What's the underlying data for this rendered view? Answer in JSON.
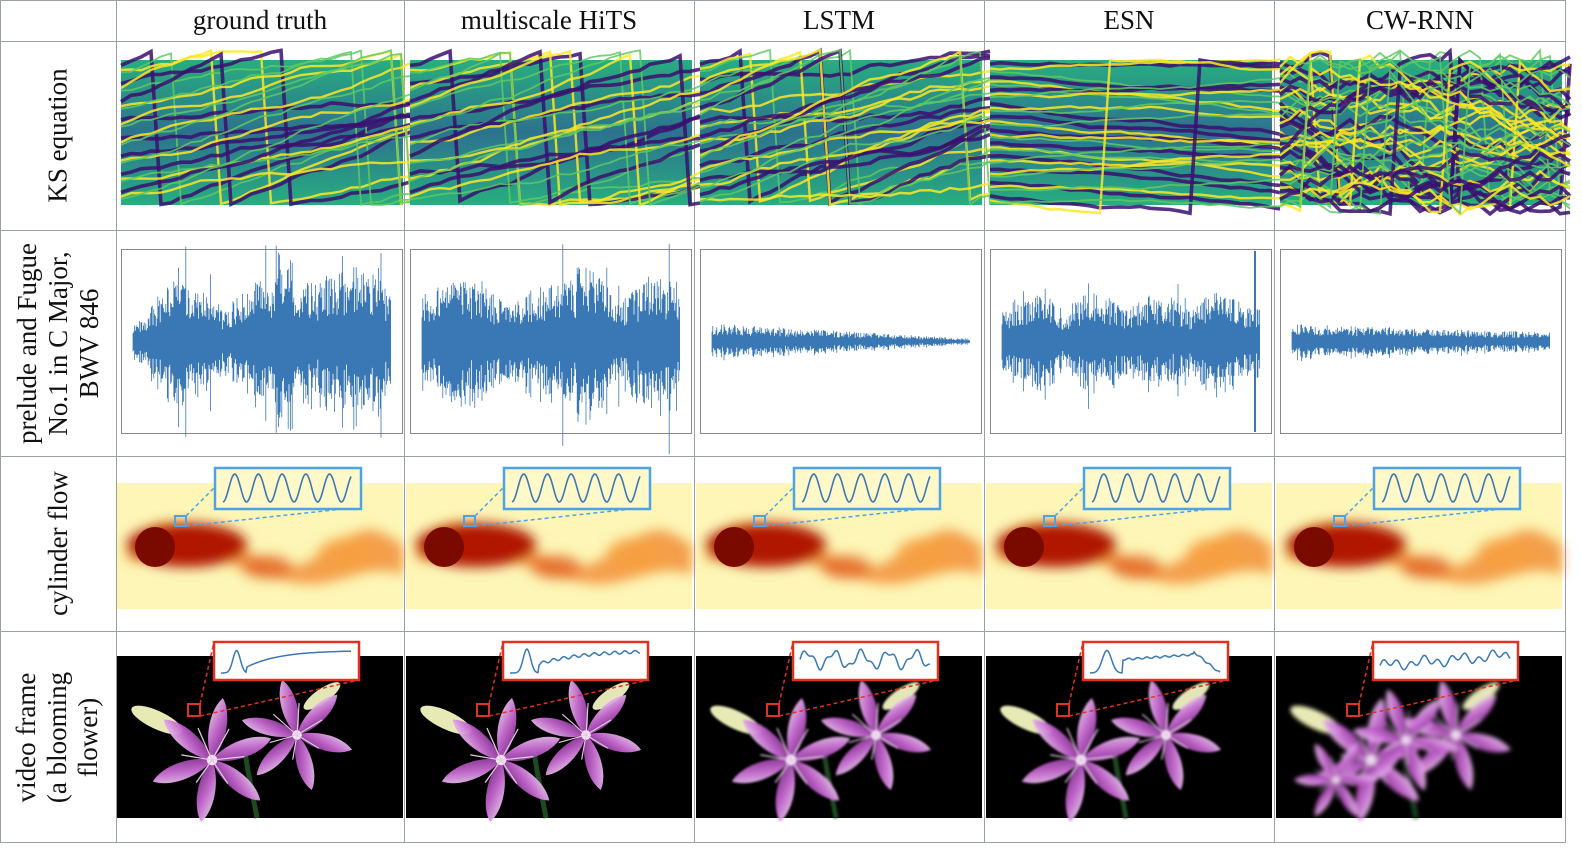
{
  "columns": [
    "ground truth",
    "multiscale HiTS",
    "LSTM",
    "ESN",
    "CW-RNN"
  ],
  "rows": [
    {
      "id": "ks",
      "label_lines": [
        "KS equation"
      ]
    },
    {
      "id": "music",
      "label_lines": [
        "prelude and Fugue",
        "No.1 in C Major,",
        "BWV 846"
      ]
    },
    {
      "id": "cylinder",
      "label_lines": [
        "cylinder flow"
      ]
    },
    {
      "id": "flower",
      "label_lines": [
        "video frame",
        "(a blooming",
        "flower)"
      ]
    }
  ],
  "colors": {
    "ks_palette": [
      "#3b0f70",
      "#2c728e",
      "#28ae80",
      "#5ec962",
      "#fde725"
    ],
    "waveform": "#3a78b5",
    "cylinder_inset_frame": "#4da3e6",
    "flower_inset_frame": "#e0321e",
    "cylinder_bg": "#fdf6b6",
    "cylinder_wake": "#7a0a00",
    "flower_bg": "#000000",
    "petal": "#c86ad2"
  }
}
